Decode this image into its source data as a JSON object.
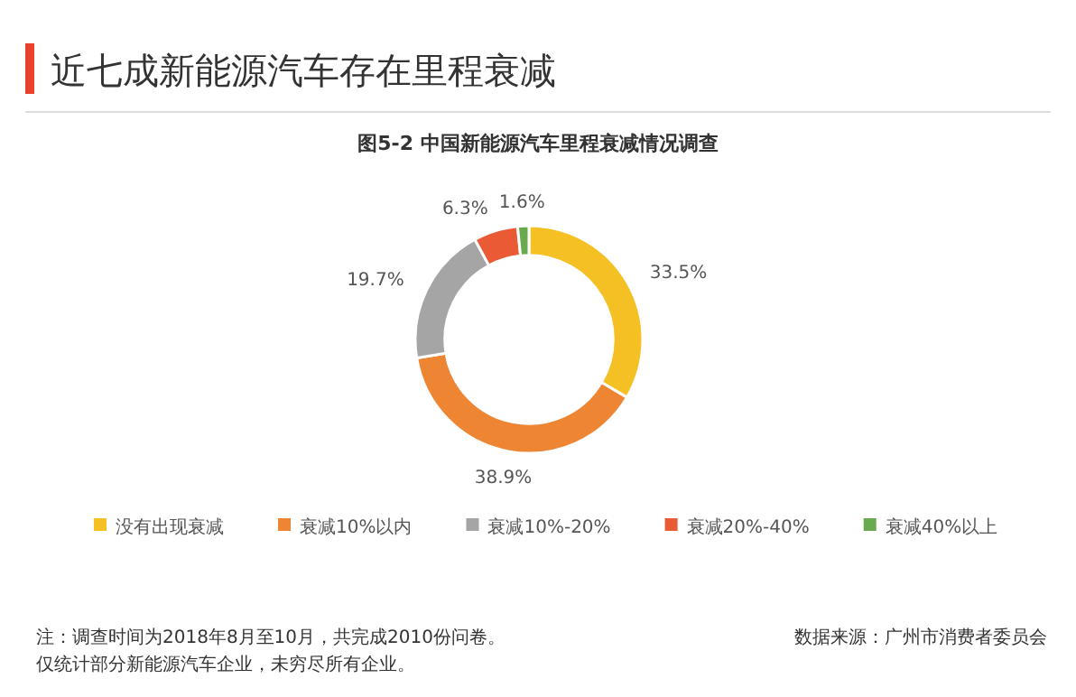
{
  "chart_data": {
    "type": "donut",
    "title": "近七成新能源汽车存在里程衰减",
    "subtitle": "图5-2 中国新能源汽车里程衰减情况调查",
    "categories": [
      "没有出现衰减",
      "衰减10%以内",
      "衰减10%-20%",
      "衰减20%-40%",
      "衰减40%以上"
    ],
    "values": [
      33.5,
      38.9,
      19.7,
      6.3,
      1.6
    ],
    "colors": [
      "#f5c024",
      "#ee8533",
      "#a5a5a5",
      "#ea5a35",
      "#6aaa4e"
    ],
    "value_labels": [
      "33.5%",
      "38.9%",
      "19.7%",
      "6.3%",
      "1.6%"
    ],
    "legend": "bottom",
    "annotations": [
      "注：调查时间为2018年8月至10月，共完成2010份问卷。",
      "仅统计部分新能源汽车企业，未穷尽所有企业。",
      "数据来源：广州市消费者委员会"
    ]
  }
}
